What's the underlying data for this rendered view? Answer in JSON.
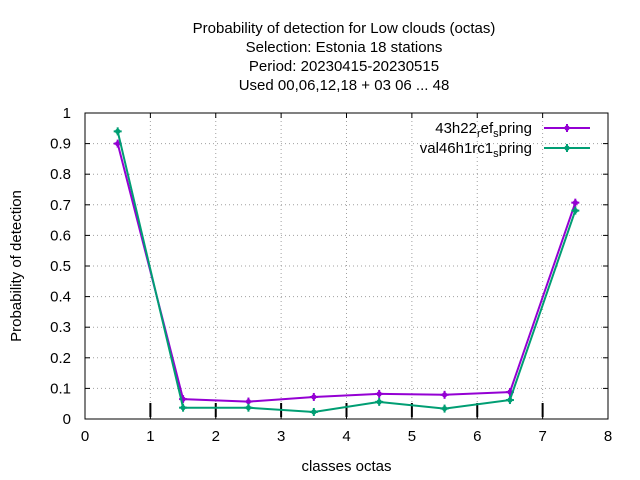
{
  "chart_data": {
    "type": "line",
    "title_lines": [
      "Probability of detection  for Low clouds (octas)",
      "Selection: Estonia     18 stations",
      "Period: 20230415-20230515",
      "Used  00,06,12,18  + 03 06 ... 48"
    ],
    "xlabel": "classes octas",
    "ylabel": "Probability of detection",
    "xlim": [
      0,
      8
    ],
    "ylim": [
      0,
      1
    ],
    "x_ticks": [
      0,
      1,
      2,
      3,
      4,
      5,
      6,
      7,
      8
    ],
    "y_ticks": [
      0,
      0.1,
      0.2,
      0.3,
      0.4,
      0.5,
      0.6,
      0.7,
      0.8,
      0.9,
      1
    ],
    "grid": true,
    "legend_position": "top-right",
    "x": [
      0.5,
      1.5,
      2.5,
      3.5,
      4.5,
      5.5,
      6.5,
      7.5
    ],
    "series": [
      {
        "name": "43h22_ref_spring",
        "legend_parts": [
          {
            "text": "43h22",
            "sub": false
          },
          {
            "text": "r",
            "sub": true
          },
          {
            "text": "ef",
            "sub": false
          },
          {
            "text": "s",
            "sub": true
          },
          {
            "text": "pring",
            "sub": false
          }
        ],
        "color": "#9400d3",
        "values": [
          0.9,
          0.065,
          0.057,
          0.072,
          0.082,
          0.079,
          0.088,
          0.707
        ]
      },
      {
        "name": "val46h1rc1_spring",
        "legend_parts": [
          {
            "text": "val46h1rc1",
            "sub": false
          },
          {
            "text": "s",
            "sub": true
          },
          {
            "text": "pring",
            "sub": false
          }
        ],
        "color": "#009e73",
        "values": [
          0.94,
          0.037,
          0.037,
          0.023,
          0.056,
          0.034,
          0.062,
          0.681
        ]
      }
    ],
    "bottom_marks_x": [
      1,
      2,
      3,
      4,
      5,
      6,
      7
    ]
  }
}
